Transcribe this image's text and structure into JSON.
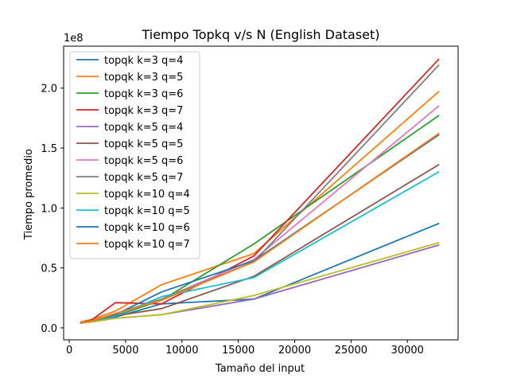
{
  "chart_data": {
    "type": "line",
    "title": "Tiempo Topkq v/s N (English Dataset)",
    "xlabel": "Tamaño del input",
    "ylabel": "Tiempo promedio",
    "y_offset_label": "1e8",
    "xlim": [
      -500,
      34500
    ],
    "ylim": [
      -0.1,
      2.35
    ],
    "x_ticks": [
      0,
      5000,
      10000,
      15000,
      20000,
      25000,
      30000
    ],
    "y_ticks": [
      0.0,
      0.5,
      1.0,
      1.5,
      2.0
    ],
    "x_tick_labels": [
      "0",
      "5000",
      "10000",
      "15000",
      "20000",
      "25000",
      "30000"
    ],
    "y_tick_labels": [
      "0.0",
      "0.5",
      "1.0",
      "1.5",
      "2.0"
    ],
    "grid": false,
    "legend_position": "upper-left",
    "x": [
      1024,
      2048,
      4096,
      8192,
      16384,
      32768
    ],
    "series": [
      {
        "name": "topqk k=3 q=4",
        "color": "#1f77b4",
        "values": [
          0.04,
          0.06,
          0.09,
          0.2,
          0.24,
          0.87
        ]
      },
      {
        "name": "topqk k=3 q=5",
        "color": "#ff7f0e",
        "values": [
          0.05,
          0.07,
          0.14,
          0.36,
          0.62,
          1.97
        ]
      },
      {
        "name": "topqk k=3 q=6",
        "color": "#2ca02c",
        "values": [
          0.04,
          0.06,
          0.1,
          0.23,
          0.7,
          1.77
        ]
      },
      {
        "name": "topqk k=3 q=7",
        "color": "#d62728",
        "values": [
          0.04,
          0.07,
          0.21,
          0.2,
          0.6,
          2.24
        ]
      },
      {
        "name": "topqk k=5 q=4",
        "color": "#9467bd",
        "values": [
          0.04,
          0.05,
          0.08,
          0.11,
          0.24,
          0.69
        ]
      },
      {
        "name": "topqk k=5 q=5",
        "color": "#8c564b",
        "values": [
          0.04,
          0.06,
          0.1,
          0.16,
          0.43,
          1.36
        ]
      },
      {
        "name": "topqk k=5 q=6",
        "color": "#e377c2",
        "values": [
          0.04,
          0.06,
          0.11,
          0.24,
          0.57,
          1.85
        ]
      },
      {
        "name": "topqk k=5 q=7",
        "color": "#7f7f7f",
        "values": [
          0.04,
          0.06,
          0.12,
          0.24,
          0.55,
          2.19
        ]
      },
      {
        "name": "topqk k=10 q=4",
        "color": "#bcbd22",
        "values": [
          0.04,
          0.05,
          0.08,
          0.11,
          0.27,
          0.71
        ]
      },
      {
        "name": "topqk k=10 q=5",
        "color": "#17becf",
        "values": [
          0.04,
          0.06,
          0.1,
          0.26,
          0.42,
          1.3
        ]
      },
      {
        "name": "topqk k=10 q=6",
        "color": "#1f77b4",
        "values": [
          0.04,
          0.06,
          0.11,
          0.3,
          0.56,
          1.61
        ]
      },
      {
        "name": "topqk k=10 q=7",
        "color": "#ff7f0e",
        "values": [
          0.04,
          0.06,
          0.12,
          0.23,
          0.55,
          1.62
        ]
      }
    ]
  }
}
